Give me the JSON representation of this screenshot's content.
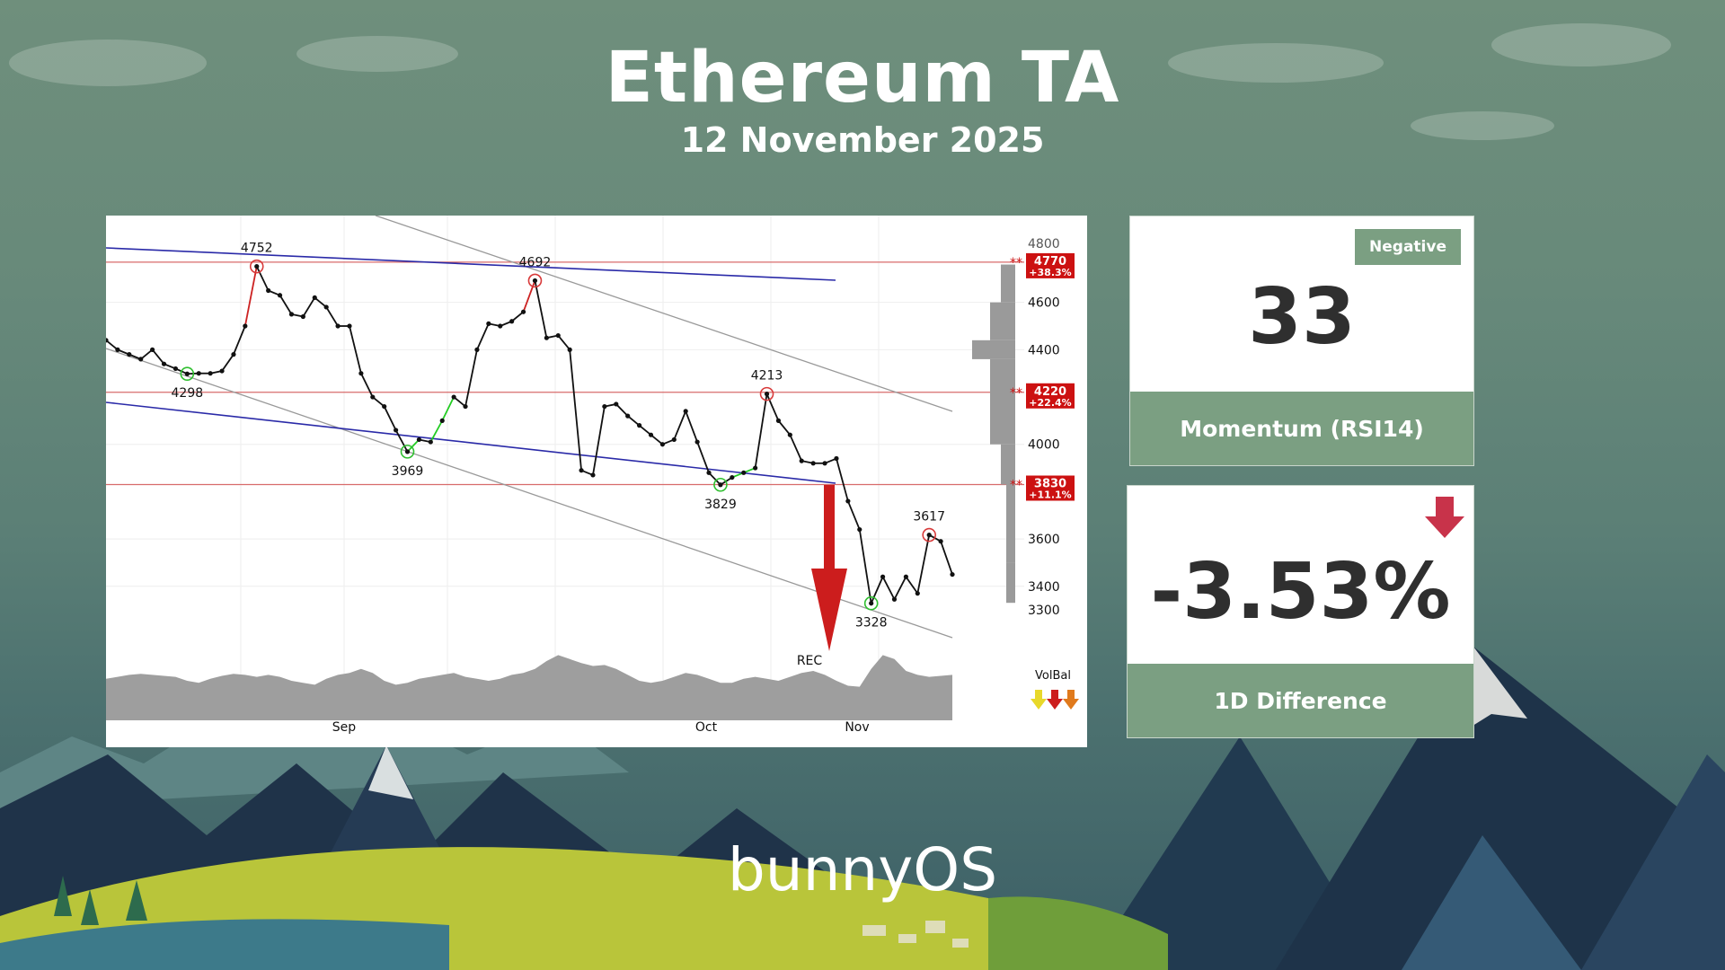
{
  "header": {
    "title": "Ethereum TA",
    "date": "12 November 2025"
  },
  "rsi_card": {
    "badge": "Negative",
    "value": "33",
    "label": "Momentum (RSI14)"
  },
  "diff_card": {
    "value": "-3.53%",
    "label": "1D Difference",
    "arrow_icon": "down-arrow-icon",
    "arrow_color": "#c8334a"
  },
  "brand": "bunnyOS",
  "colors": {
    "card_footer": "#7b9f82",
    "price_line": "#000000",
    "up_segment": "#22cc22",
    "down_segment": "#cc2222",
    "trendline": "#2222aa",
    "channel": "#999999",
    "level_box": "#cc1111"
  },
  "chart_data": {
    "type": "line",
    "x_ticks": [
      "Sep",
      "Oct",
      "Nov"
    ],
    "y_ticks": [
      3300,
      3400,
      3600,
      4000,
      4400,
      4600
    ],
    "ylim": [
      3180,
      4880
    ],
    "price": [
      4440,
      4400,
      4380,
      4360,
      4400,
      4340,
      4320,
      4298,
      4300,
      4300,
      4310,
      4380,
      4500,
      4752,
      4650,
      4630,
      4550,
      4540,
      4620,
      4580,
      4500,
      4500,
      4300,
      4200,
      4160,
      4060,
      3969,
      4020,
      4010,
      4100,
      4200,
      4160,
      4400,
      4510,
      4500,
      4520,
      4560,
      4692,
      4450,
      4460,
      4400,
      3890,
      3870,
      4160,
      4170,
      4120,
      4080,
      4040,
      4000,
      4020,
      4140,
      4010,
      3880,
      3829,
      3860,
      3880,
      3900,
      4213,
      4100,
      4040,
      3930,
      3920,
      3920,
      3940,
      3760,
      3640,
      3328,
      3440,
      3345,
      3440,
      3370,
      3617,
      3590,
      3450
    ],
    "swing_labels": [
      {
        "label": "4752",
        "value": 4752,
        "type": "high"
      },
      {
        "label": "4692",
        "value": 4692,
        "type": "high"
      },
      {
        "label": "4213",
        "value": 4213,
        "type": "high"
      },
      {
        "label": "3617",
        "value": 3617,
        "type": "high"
      },
      {
        "label": "4298",
        "value": 4298,
        "type": "low"
      },
      {
        "label": "3969",
        "value": 3969,
        "type": "low"
      },
      {
        "label": "3829",
        "value": 3829,
        "type": "low"
      },
      {
        "label": "3328",
        "value": 3328,
        "type": "low"
      }
    ],
    "levels": [
      {
        "price": "4770",
        "change": "+38.3%"
      },
      {
        "price": "4220",
        "change": "+22.4%"
      },
      {
        "price": "3830",
        "change": "+11.1%"
      }
    ],
    "annotation": "REC",
    "indicator_label": "VolBal",
    "volume": [
      0.42,
      0.44,
      0.46,
      0.47,
      0.46,
      0.45,
      0.44,
      0.4,
      0.38,
      0.42,
      0.45,
      0.47,
      0.46,
      0.44,
      0.46,
      0.44,
      0.4,
      0.38,
      0.36,
      0.42,
      0.46,
      0.48,
      0.52,
      0.48,
      0.4,
      0.36,
      0.38,
      0.42,
      0.44,
      0.46,
      0.48,
      0.44,
      0.42,
      0.4,
      0.42,
      0.46,
      0.48,
      0.52,
      0.6,
      0.66,
      0.62,
      0.58,
      0.55,
      0.56,
      0.52,
      0.46,
      0.4,
      0.38,
      0.4,
      0.44,
      0.48,
      0.46,
      0.42,
      0.38,
      0.38,
      0.42,
      0.44,
      0.42,
      0.4,
      0.44,
      0.48,
      0.5,
      0.46,
      0.4,
      0.35,
      0.34,
      0.52,
      0.66,
      0.62,
      0.5,
      0.46,
      0.44,
      0.45,
      0.46
    ],
    "grid": true
  }
}
